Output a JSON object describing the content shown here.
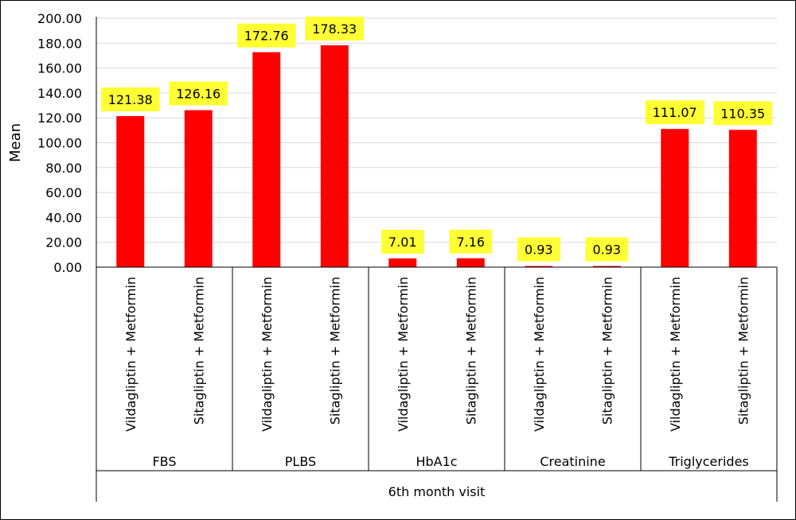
{
  "chart_data": {
    "type": "bar",
    "ylabel": "Mean",
    "ylim": [
      0,
      200
    ],
    "y_ticks": [
      "0.00",
      "20.00",
      "40.00",
      "60.00",
      "80.00",
      "100.00",
      "120.00",
      "140.00",
      "160.00",
      "180.00",
      "200.00"
    ],
    "grid": true,
    "legend": "none",
    "outer_group": "6th month visit",
    "groups": [
      {
        "label": "FBS",
        "categories": [
          "Vildagliptin + Metformin",
          "Sitagliptin + Metformin"
        ],
        "values": [
          121.38,
          126.16
        ],
        "data_labels": [
          "121.38",
          "126.16"
        ]
      },
      {
        "label": "PLBS",
        "categories": [
          "Vildagliptin + Metformin",
          "Sitagliptin + Metformin"
        ],
        "values": [
          172.76,
          178.33
        ],
        "data_labels": [
          "172.76",
          "178.33"
        ]
      },
      {
        "label": "HbA1c",
        "categories": [
          "Vildagliptin + Metformin",
          "Sitagliptin + Metformin"
        ],
        "values": [
          7.01,
          7.16
        ],
        "data_labels": [
          "7.01",
          "7.16"
        ]
      },
      {
        "label": "Creatinine",
        "categories": [
          "Vildagliptin + Metformin",
          "Sitagliptin + Metformin"
        ],
        "values": [
          0.93,
          0.93
        ],
        "data_labels": [
          "0.93",
          "0.93"
        ]
      },
      {
        "label": "Triglycerides",
        "categories": [
          "Vildagliptin + Metformin",
          "Sitagliptin + Metformin"
        ],
        "values": [
          111.07,
          110.35
        ],
        "data_labels": [
          "111.07",
          "110.35"
        ]
      }
    ],
    "colors": {
      "bar": "#ff0000",
      "data_label_bg": "#ffff33",
      "grid": "#d9d9d9",
      "axis": "#000000"
    }
  }
}
